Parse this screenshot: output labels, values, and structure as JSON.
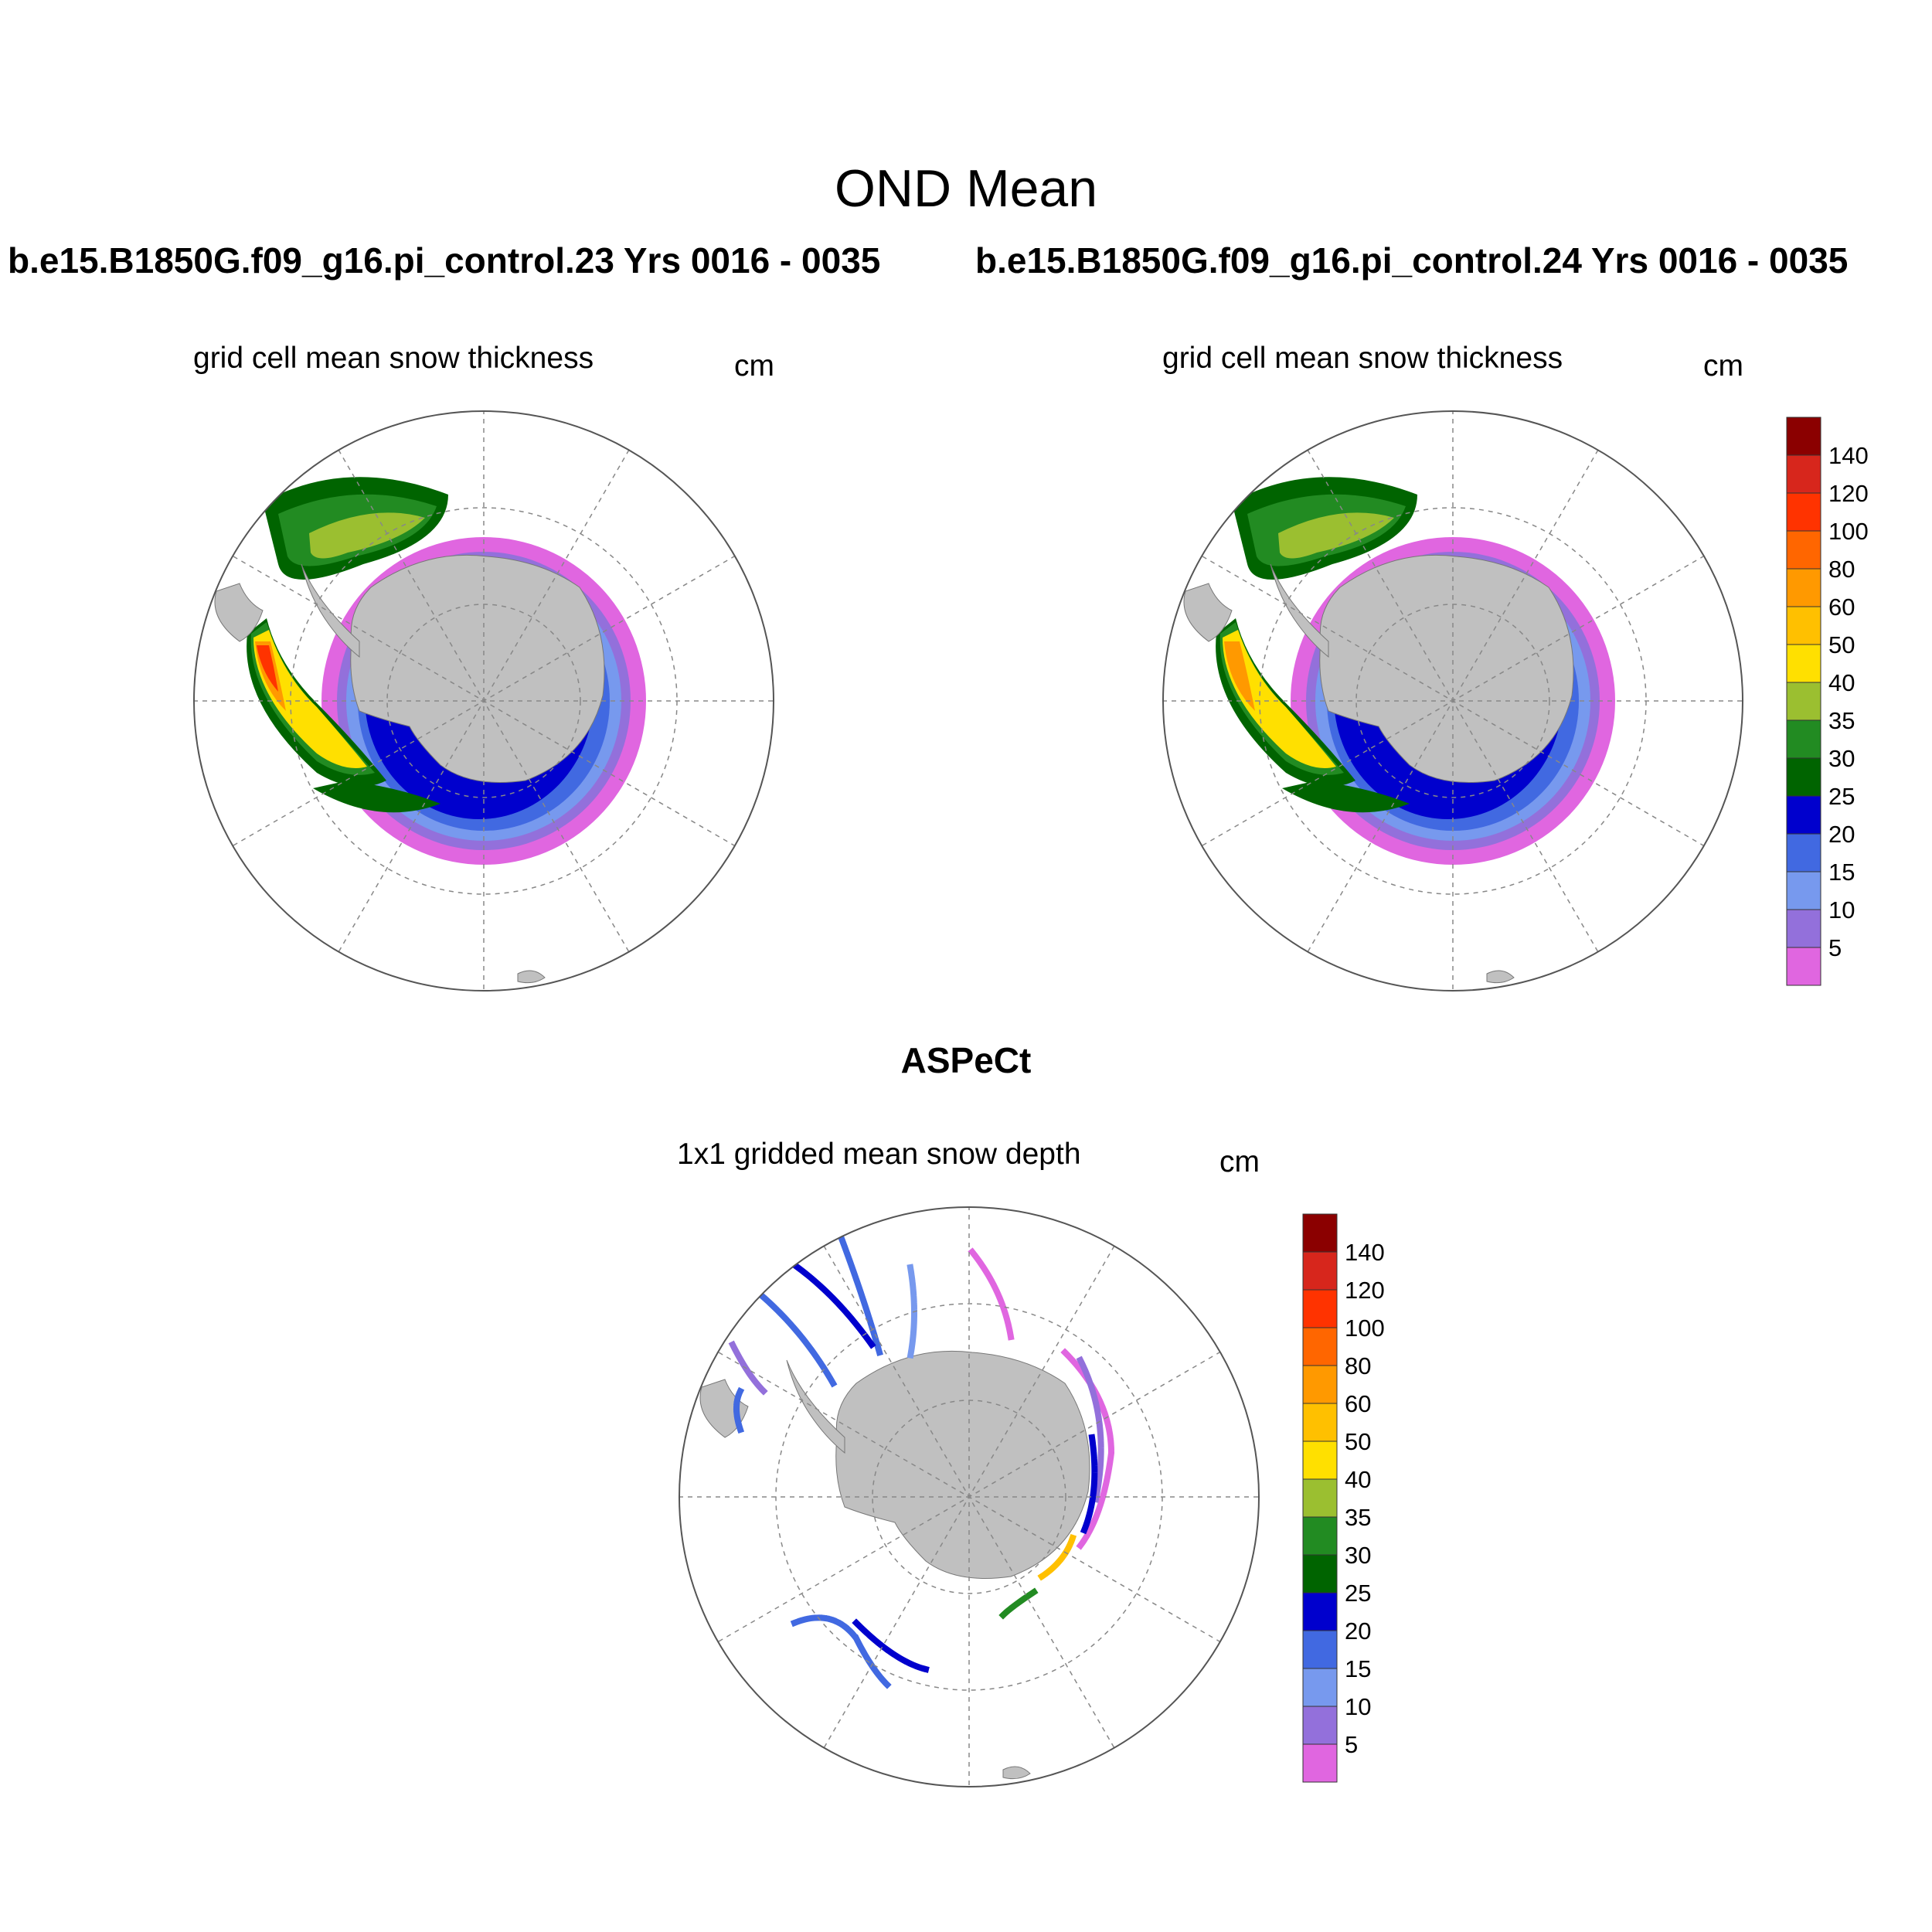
{
  "main_title": "OND Mean",
  "panels": [
    {
      "run": "b.e15.B1850G.f09_g16.pi_control.23  Yrs 0016 - 0035",
      "subtitle": "grid cell mean snow thickness",
      "units": "cm"
    },
    {
      "run": "b.e15.B1850G.f09_g16.pi_control.24  Yrs 0016 - 0035",
      "subtitle": "grid cell mean snow thickness",
      "units": "cm"
    }
  ],
  "obs_panel": {
    "title": "ASPeCt",
    "subtitle": "1x1 gridded mean snow depth",
    "units": "cm"
  },
  "colorbar": {
    "labels": [
      "140",
      "120",
      "100",
      "80",
      "60",
      "50",
      "40",
      "35",
      "30",
      "25",
      "20",
      "15",
      "10",
      "5"
    ],
    "colors": [
      "#8b0000",
      "#d7261c",
      "#ff3300",
      "#ff6600",
      "#ff9900",
      "#ffc000",
      "#ffe000",
      "#9bbf30",
      "#228b22",
      "#006400",
      "#0000cd",
      "#4169e1",
      "#7799ee",
      "#9370db",
      "#e066e0"
    ]
  },
  "colors": {
    "land": "#c0c0c0",
    "grid_line": "#888888",
    "map_border": "#555555"
  }
}
